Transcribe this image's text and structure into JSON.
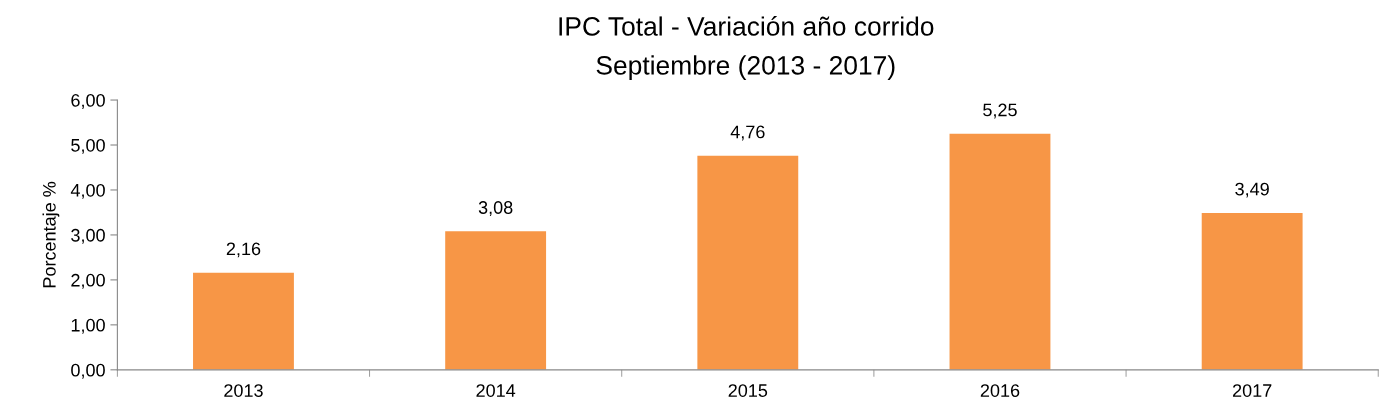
{
  "chart_data": {
    "type": "bar",
    "title": "IPC Total - Variación año corrido",
    "subtitle": "Septiembre (2013 - 2017)",
    "ylabel": "Porcentaje %",
    "categories": [
      "2013",
      "2014",
      "2015",
      "2016",
      "2017"
    ],
    "values": [
      2.16,
      3.08,
      4.76,
      5.25,
      3.49
    ],
    "value_labels": [
      "2,16",
      "3,08",
      "4,76",
      "5,25",
      "3,49"
    ],
    "color": "#f79646",
    "ylim": [
      0,
      6
    ],
    "yticks": [
      {
        "value": 0,
        "label": "0,00"
      },
      {
        "value": 1,
        "label": "1,00"
      },
      {
        "value": 2,
        "label": "2,00"
      },
      {
        "value": 3,
        "label": "3,00"
      },
      {
        "value": 4,
        "label": "4,00"
      },
      {
        "value": 5,
        "label": "5,00"
      },
      {
        "value": 6,
        "label": "6,00"
      }
    ],
    "grid": false,
    "legend": false
  }
}
